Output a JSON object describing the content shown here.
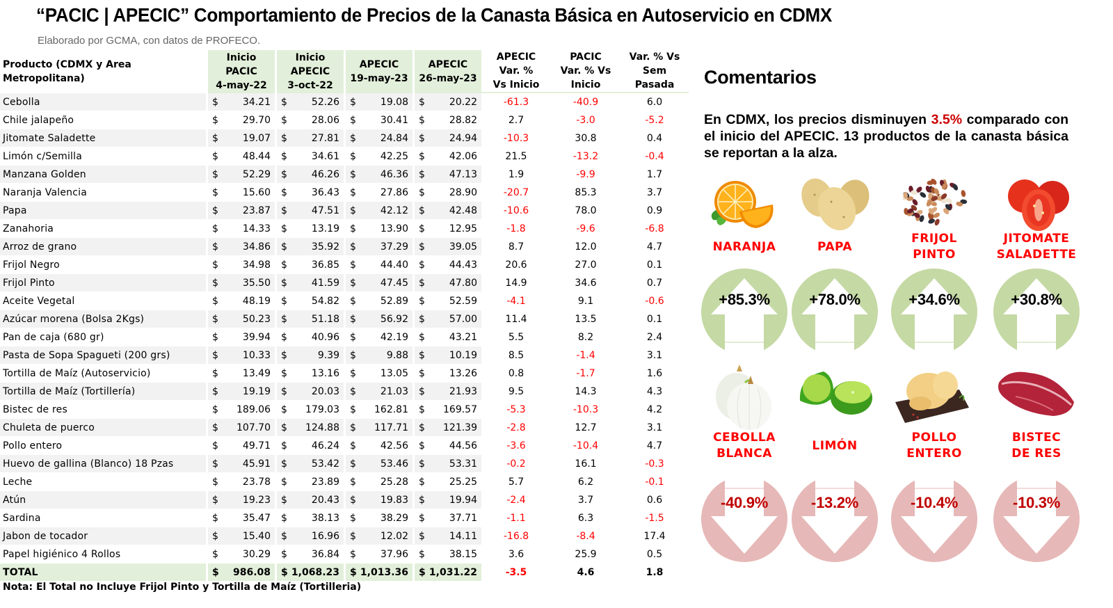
{
  "header": {
    "title": "“PACIC | APECIC” Comportamiento de Precios de la Canasta Básica en Autoservicio en CDMX",
    "subtitle": "Elaborado por GCMA, con datos de PROFECO."
  },
  "table": {
    "columns": {
      "product": "Producto (CDMX y Area Metropolitana)",
      "c1": [
        "Inicio",
        "PACIC",
        "4-may-22"
      ],
      "c2": [
        "Inicio",
        "APECIC",
        "3-oct-22"
      ],
      "c3": [
        "APECIC",
        "19-may-23"
      ],
      "c4": [
        "APECIC",
        "26-may-23"
      ],
      "c5": [
        "APECIC",
        "Var. %",
        "Vs  Inicio"
      ],
      "c6": [
        "PACIC",
        "Var. % Vs",
        "Inicio"
      ],
      "c7": [
        "Var. % Vs",
        "Sem Pasada"
      ]
    },
    "currency_symbol": "$",
    "rows": [
      {
        "name": "Cebolla",
        "pacic": "34.21",
        "apecic": "52.26",
        "may19": "19.08",
        "may26": "20.22",
        "var_apecic": "-61.3",
        "var_pacic": "-40.9",
        "var_sem": "6.0"
      },
      {
        "name": "Chile jalapeño",
        "pacic": "29.70",
        "apecic": "28.06",
        "may19": "30.41",
        "may26": "28.82",
        "var_apecic": "2.7",
        "var_pacic": "-3.0",
        "var_sem": "-5.2"
      },
      {
        "name": "Jitomate Saladette",
        "pacic": "19.07",
        "apecic": "27.81",
        "may19": "24.84",
        "may26": "24.94",
        "var_apecic": "-10.3",
        "var_pacic": "30.8",
        "var_sem": "0.4"
      },
      {
        "name": "Limón c/Semilla",
        "pacic": "48.44",
        "apecic": "34.61",
        "may19": "42.25",
        "may26": "42.06",
        "var_apecic": "21.5",
        "var_pacic": "-13.2",
        "var_sem": "-0.4"
      },
      {
        "name": "Manzana Golden",
        "pacic": "52.29",
        "apecic": "46.26",
        "may19": "46.36",
        "may26": "47.13",
        "var_apecic": "1.9",
        "var_pacic": "-9.9",
        "var_sem": "1.7"
      },
      {
        "name": "Naranja Valencia",
        "pacic": "15.60",
        "apecic": "36.43",
        "may19": "27.86",
        "may26": "28.90",
        "var_apecic": "-20.7",
        "var_pacic": "85.3",
        "var_sem": "3.7"
      },
      {
        "name": "Papa",
        "pacic": "23.87",
        "apecic": "47.51",
        "may19": "42.12",
        "may26": "42.48",
        "var_apecic": "-10.6",
        "var_pacic": "78.0",
        "var_sem": "0.9"
      },
      {
        "name": "Zanahoria",
        "pacic": "14.33",
        "apecic": "13.19",
        "may19": "13.90",
        "may26": "12.95",
        "var_apecic": "-1.8",
        "var_pacic": "-9.6",
        "var_sem": "-6.8"
      },
      {
        "name": "Arroz de grano",
        "pacic": "34.86",
        "apecic": "35.92",
        "may19": "37.29",
        "may26": "39.05",
        "var_apecic": "8.7",
        "var_pacic": "12.0",
        "var_sem": "4.7"
      },
      {
        "name": "Frijol Negro",
        "pacic": "34.98",
        "apecic": "36.85",
        "may19": "44.40",
        "may26": "44.43",
        "var_apecic": "20.6",
        "var_pacic": "27.0",
        "var_sem": "0.1"
      },
      {
        "name": "Frijol Pinto",
        "pacic": "35.50",
        "apecic": "41.59",
        "may19": "47.45",
        "may26": "47.80",
        "var_apecic": "14.9",
        "var_pacic": "34.6",
        "var_sem": "0.7"
      },
      {
        "name": "Aceite Vegetal",
        "pacic": "48.19",
        "apecic": "54.82",
        "may19": "52.89",
        "may26": "52.59",
        "var_apecic": "-4.1",
        "var_pacic": "9.1",
        "var_sem": "-0.6"
      },
      {
        "name": "Azúcar morena (Bolsa 2Kgs)",
        "pacic": "50.23",
        "apecic": "51.18",
        "may19": "56.92",
        "may26": "57.00",
        "var_apecic": "11.4",
        "var_pacic": "13.5",
        "var_sem": "0.1"
      },
      {
        "name": "Pan de caja (680 gr)",
        "pacic": "39.94",
        "apecic": "40.96",
        "may19": "42.19",
        "may26": "43.21",
        "var_apecic": "5.5",
        "var_pacic": "8.2",
        "var_sem": "2.4"
      },
      {
        "name": "Pasta de Sopa Spagueti (200 grs)",
        "pacic": "10.33",
        "apecic": "9.39",
        "may19": "9.88",
        "may26": "10.19",
        "var_apecic": "8.5",
        "var_pacic": "-1.4",
        "var_sem": "3.1"
      },
      {
        "name": "Tortilla de Maíz (Autoservicio)",
        "pacic": "13.49",
        "apecic": "13.16",
        "may19": "13.05",
        "may26": "13.26",
        "var_apecic": "0.8",
        "var_pacic": "-1.7",
        "var_sem": "1.6"
      },
      {
        "name": "Tortilla de Maíz (Tortillería)",
        "pacic": "19.19",
        "apecic": "20.03",
        "may19": "21.03",
        "may26": "21.93",
        "var_apecic": "9.5",
        "var_pacic": "14.3",
        "var_sem": "4.3"
      },
      {
        "name": "Bistec de res",
        "pacic": "189.06",
        "apecic": "179.03",
        "may19": "162.81",
        "may26": "169.57",
        "var_apecic": "-5.3",
        "var_pacic": "-10.3",
        "var_sem": "4.2"
      },
      {
        "name": "Chuleta de puerco",
        "pacic": "107.70",
        "apecic": "124.88",
        "may19": "117.71",
        "may26": "121.39",
        "var_apecic": "-2.8",
        "var_pacic": "12.7",
        "var_sem": "3.1"
      },
      {
        "name": "Pollo entero",
        "pacic": "49.71",
        "apecic": "46.24",
        "may19": "42.56",
        "may26": "44.56",
        "var_apecic": "-3.6",
        "var_pacic": "-10.4",
        "var_sem": "4.7"
      },
      {
        "name": "Huevo de gallina (Blanco) 18 Pzas",
        "pacic": "45.91",
        "apecic": "53.42",
        "may19": "53.46",
        "may26": "53.31",
        "var_apecic": "-0.2",
        "var_pacic": "16.1",
        "var_sem": "-0.3"
      },
      {
        "name": "Leche",
        "pacic": "23.78",
        "apecic": "23.89",
        "may19": "25.28",
        "may26": "25.25",
        "var_apecic": "5.7",
        "var_pacic": "6.2",
        "var_sem": "-0.1"
      },
      {
        "name": "Atún",
        "pacic": "19.23",
        "apecic": "20.43",
        "may19": "19.83",
        "may26": "19.94",
        "var_apecic": "-2.4",
        "var_pacic": "3.7",
        "var_sem": "0.6"
      },
      {
        "name": "Sardina",
        "pacic": "35.47",
        "apecic": "38.13",
        "may19": "38.29",
        "may26": "37.71",
        "var_apecic": "-1.1",
        "var_pacic": "6.3",
        "var_sem": "-1.5"
      },
      {
        "name": "Jabon de tocador",
        "pacic": "15.40",
        "apecic": "16.96",
        "may19": "12.02",
        "may26": "14.11",
        "var_apecic": "-16.8",
        "var_pacic": "-8.4",
        "var_sem": "17.4"
      },
      {
        "name": "Papel higiénico 4 Rollos",
        "pacic": "30.29",
        "apecic": "36.84",
        "may19": "37.96",
        "may26": "38.15",
        "var_apecic": "3.6",
        "var_pacic": "25.9",
        "var_sem": "0.5"
      }
    ],
    "total": {
      "name": "TOTAL",
      "pacic": "986.08",
      "apecic": "1,068.23",
      "may19": "1,013.36",
      "may26": "1,031.22",
      "var_apecic": "-3.5",
      "var_pacic": "4.6",
      "var_sem": "1.8"
    },
    "note": "Nota: El Total no Incluye Frijol Pinto y Tortilla de Maíz (Tortilleria)"
  },
  "comments": {
    "title": "Comentarios",
    "text_before": "En CDMX, los precios disminuyen ",
    "highlight": "3.5%",
    "text_after": " comparado con el inicio del APECIC. 13 productos de la canasta básica se reportan a la alza."
  },
  "highlights": {
    "up": [
      {
        "label": [
          "NARANJA"
        ],
        "value": "+85.3%",
        "icon": "orange-icon"
      },
      {
        "label": [
          "PAPA"
        ],
        "value": "+78.0%",
        "icon": "potato-icon"
      },
      {
        "label": [
          "FRIJOL",
          "PINTO"
        ],
        "value": "+34.6%",
        "icon": "beans-icon"
      },
      {
        "label": [
          "JITOMATE",
          "SALADETTE"
        ],
        "value": "+30.8%",
        "icon": "tomato-icon"
      }
    ],
    "down": [
      {
        "label": [
          "CEBOLLA",
          "BLANCA"
        ],
        "value": "-40.9%",
        "icon": "onion-icon"
      },
      {
        "label": [
          "LIMÓN"
        ],
        "value": "-13.2%",
        "icon": "lime-icon"
      },
      {
        "label": [
          "POLLO",
          "ENTERO"
        ],
        "value": "-10.4%",
        "icon": "chicken-icon"
      },
      {
        "label": [
          "BISTEC",
          "DE RES"
        ],
        "value": "-10.3%",
        "icon": "beef-icon"
      }
    ]
  },
  "colors": {
    "header_green": "#e2efda",
    "negative_red": "#ff0000",
    "up_circle": "#c5d9a4",
    "down_circle": "#e6b8b7",
    "label_red": "#ff0000",
    "highlight_red": "#cc0000"
  }
}
